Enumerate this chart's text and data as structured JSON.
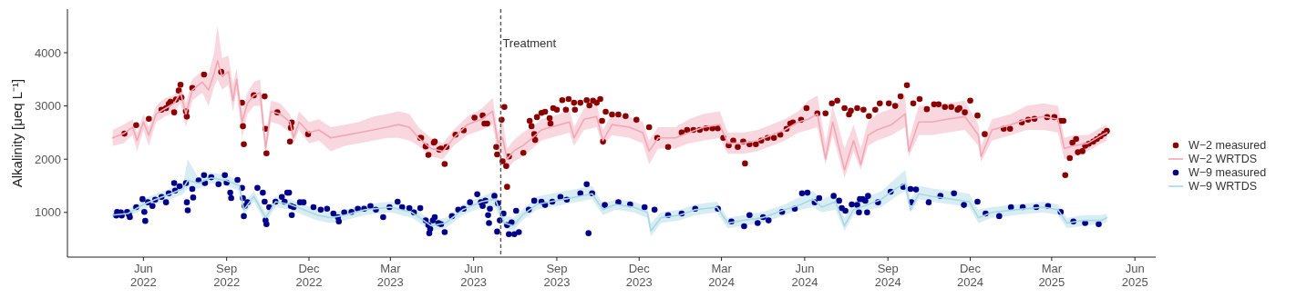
{
  "chart_data": {
    "type": "line",
    "ylabel": "Alkalinity [μeq L⁻¹]",
    "xlim": [
      "2022-03-09",
      "2025-06-24"
    ],
    "ylim": [
      160,
      4820
    ],
    "yticks": [
      1000,
      2000,
      3000,
      4000
    ],
    "xticks": [
      {
        "value": "2022-06-01",
        "label": "Jun 2022"
      },
      {
        "value": "2022-09-01",
        "label": "Sep 2022"
      },
      {
        "value": "2022-12-01",
        "label": "Dec 2022"
      },
      {
        "value": "2023-03-01",
        "label": "Mar 2023"
      },
      {
        "value": "2023-06-01",
        "label": "Jun 2023"
      },
      {
        "value": "2023-09-01",
        "label": "Sep 2023"
      },
      {
        "value": "2023-12-01",
        "label": "Dec 2023"
      },
      {
        "value": "2024-03-01",
        "label": "Mar 2024"
      },
      {
        "value": "2024-06-01",
        "label": "Jun 2024"
      },
      {
        "value": "2024-09-01",
        "label": "Sep 2024"
      },
      {
        "value": "2024-12-01",
        "label": "Dec 2024"
      },
      {
        "value": "2025-03-01",
        "label": "Mar 2025"
      },
      {
        "value": "2025-06-01",
        "label": "Jun 2025"
      }
    ],
    "legend": "right",
    "grid": false,
    "ref_lines": [
      {
        "axis": "x",
        "value": "2023-07-01",
        "label": "Treatment",
        "color": "#555555",
        "line_style": "dashed"
      }
    ],
    "series": [
      {
        "name": "W−2 measured",
        "type": "scatter",
        "marker": "circle",
        "color": "#8b0000",
        "x": [
          "2022-05-11",
          "2022-05-24",
          "2022-06-07",
          "2022-06-21",
          "2022-06-26",
          "2022-06-29",
          "2022-07-01",
          "2022-07-05",
          "2022-07-07",
          "2022-07-10",
          "2022-07-12",
          "2022-07-13",
          "2022-07-18",
          "2022-07-19",
          "2022-07-25",
          "2022-08-07",
          "2022-08-26",
          "2022-09-18",
          "2022-09-19",
          "2022-09-20",
          "2022-10-01",
          "2022-10-13",
          "2022-10-14",
          "2022-10-15",
          "2022-10-27",
          "2022-11-12",
          "2022-11-11",
          "2022-11-10",
          "2022-11-30",
          "2023-04-03",
          "2023-04-04",
          "2023-04-09",
          "2023-04-12",
          "2023-04-18",
          "2023-04-19",
          "2023-04-24",
          "2023-04-26",
          "2023-04-30",
          "2023-05-02",
          "2023-05-12",
          "2023-05-21",
          "2023-06-02",
          "2023-06-11",
          "2023-06-13",
          "2023-06-16",
          "2023-06-26",
          "2023-06-27",
          "2023-07-02",
          "2023-07-05",
          "2023-07-03",
          "2023-07-07",
          "2023-07-08",
          "2023-07-10",
          "2023-07-26",
          "2023-08-02",
          "2023-08-04",
          "2023-08-07",
          "2023-08-08",
          "2023-08-10",
          "2023-08-15",
          "2023-08-19",
          "2023-08-24",
          "2023-08-25",
          "2023-08-28",
          "2023-09-01",
          "2023-09-07",
          "2023-09-11",
          "2023-09-14",
          "2023-09-20",
          "2023-09-21",
          "2023-09-27",
          "2023-10-04",
          "2023-10-07",
          "2023-10-11",
          "2023-10-15",
          "2023-10-19",
          "2023-10-21",
          "2023-10-22",
          "2023-10-25",
          "2023-11-01",
          "2023-11-08",
          "2023-11-16",
          "2023-11-28",
          "2023-12-12",
          "2023-12-21",
          "2024-01-02",
          "2024-01-17",
          "2024-01-23",
          "2024-01-30",
          "2024-02-06",
          "2024-02-13",
          "2024-02-20",
          "2024-02-26",
          "2024-03-03",
          "2024-03-09",
          "2024-03-14",
          "2024-03-19",
          "2024-03-25",
          "2024-03-27",
          "2024-04-01",
          "2024-04-08",
          "2024-04-14",
          "2024-04-21",
          "2024-04-28",
          "2024-05-05",
          "2024-05-12",
          "2024-05-16",
          "2024-05-19",
          "2024-05-28",
          "2024-06-03",
          "2024-06-15",
          "2024-06-24",
          "2024-07-01",
          "2024-07-07",
          "2024-07-15",
          "2024-07-20",
          "2024-07-22",
          "2024-07-29",
          "2024-08-05",
          "2024-08-11",
          "2024-08-18",
          "2024-08-23",
          "2024-09-02",
          "2024-09-09",
          "2024-09-15",
          "2024-09-22",
          "2024-09-29",
          "2024-10-06",
          "2024-10-14",
          "2024-10-22",
          "2024-10-27",
          "2024-11-03",
          "2024-11-10",
          "2024-11-17",
          "2024-11-19",
          "2024-11-25",
          "2024-12-01",
          "2024-12-09",
          "2024-12-17",
          "2025-01-07",
          "2025-01-14",
          "2025-01-27",
          "2025-02-03",
          "2025-02-10",
          "2025-02-24",
          "2025-03-04",
          "2025-03-11",
          "2025-03-14",
          "2025-03-16",
          "2025-03-21",
          "2025-03-24",
          "2025-03-28",
          "2025-03-30",
          "2025-04-04",
          "2025-04-07",
          "2025-04-11",
          "2025-04-16",
          "2025-04-20",
          "2025-04-24",
          "2025-04-28",
          "2025-05-01"
        ],
        "values": [
          2480,
          2640,
          2760,
          2930,
          2960,
          3040,
          3080,
          2880,
          3120,
          3290,
          3400,
          3160,
          2900,
          2800,
          3340,
          3590,
          3640,
          3060,
          2620,
          2280,
          3200,
          3180,
          2570,
          2110,
          2880,
          2690,
          2590,
          2330,
          2470,
          2400,
          2400,
          2240,
          2080,
          2310,
          2330,
          2180,
          2200,
          1910,
          2230,
          2460,
          2540,
          2780,
          2820,
          2670,
          2670,
          2230,
          2090,
          2740,
          2980,
          1960,
          1870,
          1480,
          2050,
          2120,
          2720,
          2620,
          2470,
          2360,
          2790,
          2870,
          2890,
          2770,
          2670,
          2960,
          2930,
          3110,
          2930,
          3130,
          3060,
          2930,
          3060,
          3110,
          3010,
          3100,
          3060,
          3130,
          2720,
          2330,
          2890,
          2840,
          2840,
          2810,
          2740,
          2600,
          2400,
          2230,
          2500,
          2550,
          2550,
          2550,
          2580,
          2580,
          2580,
          2400,
          2260,
          2350,
          2230,
          2330,
          1920,
          2280,
          2280,
          2350,
          2400,
          2400,
          2460,
          2570,
          2670,
          2690,
          2740,
          2960,
          2860,
          2860,
          3050,
          3100,
          2960,
          2840,
          2910,
          2960,
          2930,
          2810,
          2930,
          3050,
          3050,
          3000,
          3180,
          3390,
          3050,
          3130,
          2940,
          3030,
          3030,
          2980,
          2980,
          2930,
          2960,
          2880,
          3100,
          2820,
          2470,
          2570,
          2570,
          2690,
          2740,
          2760,
          2790,
          2790,
          2720,
          2720,
          1700,
          2020,
          2310,
          2380,
          2130,
          2150,
          2250,
          2290,
          2330,
          2380,
          2430,
          2480,
          2530
        ]
      },
      {
        "name": "W−2 WRTDS",
        "marker": "none",
        "color": "#f2a7b6",
        "x": [
          "2022-04-28",
          "2022-05-10",
          "2022-05-20",
          "2022-05-25",
          "2022-06-01",
          "2022-06-07",
          "2022-06-15",
          "2022-06-25",
          "2022-07-05",
          "2022-07-12",
          "2022-07-18",
          "2022-07-25",
          "2022-08-05",
          "2022-08-12",
          "2022-08-18",
          "2022-08-22",
          "2022-08-27",
          "2022-09-03",
          "2022-09-08",
          "2022-09-12",
          "2022-09-18",
          "2022-09-24",
          "2022-10-01",
          "2022-10-08",
          "2022-10-14",
          "2022-10-20",
          "2022-10-30",
          "2022-11-10",
          "2022-11-14",
          "2022-11-20",
          "2022-12-01",
          "2022-12-12",
          "2022-12-25",
          "2023-01-10",
          "2023-01-25",
          "2023-02-10",
          "2023-02-25",
          "2023-03-10",
          "2023-03-22",
          "2023-04-01",
          "2023-04-15",
          "2023-04-28",
          "2023-05-10",
          "2023-05-25",
          "2023-06-10",
          "2023-06-22",
          "2023-06-28",
          "2023-07-03",
          "2023-07-08",
          "2023-07-15",
          "2023-07-25",
          "2023-08-05",
          "2023-08-15",
          "2023-08-25",
          "2023-09-05",
          "2023-09-15",
          "2023-09-20",
          "2023-10-01",
          "2023-10-15",
          "2023-10-22",
          "2023-11-01",
          "2023-11-20",
          "2023-12-05",
          "2023-12-12",
          "2023-12-22",
          "2024-01-10",
          "2024-01-25",
          "2024-02-10",
          "2024-02-28",
          "2024-03-08",
          "2024-03-25",
          "2024-04-10",
          "2024-04-25",
          "2024-05-10",
          "2024-05-25",
          "2024-06-05",
          "2024-06-15",
          "2024-06-24",
          "2024-07-02",
          "2024-07-15",
          "2024-07-25",
          "2024-08-02",
          "2024-08-10",
          "2024-08-20",
          "2024-09-05",
          "2024-09-20",
          "2024-09-24",
          "2024-10-05",
          "2024-10-20",
          "2024-11-05",
          "2024-11-25",
          "2024-12-10",
          "2024-12-13",
          "2024-12-25",
          "2025-01-15",
          "2025-02-01",
          "2025-02-20",
          "2025-03-08",
          "2025-03-15",
          "2025-03-25",
          "2025-04-10",
          "2025-04-25",
          "2025-05-01"
        ],
        "values": [
          2400,
          2480,
          2600,
          2350,
          2700,
          2450,
          2850,
          2950,
          3050,
          3250,
          2850,
          3300,
          3450,
          3300,
          3600,
          3850,
          3550,
          3650,
          3100,
          3500,
          2700,
          3050,
          3200,
          3250,
          2200,
          2900,
          2850,
          2700,
          2400,
          2700,
          2500,
          2550,
          2400,
          2450,
          2500,
          2550,
          2600,
          2650,
          2600,
          2400,
          2200,
          2150,
          2400,
          2650,
          2750,
          2900,
          2300,
          2400,
          2000,
          2150,
          2250,
          2400,
          2550,
          2600,
          2650,
          2700,
          2400,
          2750,
          2800,
          2350,
          2650,
          2600,
          2500,
          2150,
          2400,
          2400,
          2500,
          2600,
          2650,
          2300,
          2300,
          2350,
          2450,
          2550,
          2700,
          2750,
          2850,
          2000,
          2700,
          1800,
          2350,
          1900,
          2450,
          2550,
          2650,
          2850,
          2150,
          2700,
          2700,
          2750,
          2800,
          2450,
          2050,
          2550,
          2650,
          2750,
          2800,
          2750,
          2200,
          2250,
          2300,
          2450,
          2500
        ],
        "lower": [
          2250,
          2300,
          2450,
          2150,
          2550,
          2250,
          2700,
          2800,
          2900,
          3050,
          2600,
          3100,
          3250,
          3000,
          3350,
          3500,
          3300,
          3400,
          2900,
          3300,
          2400,
          2850,
          3000,
          3000,
          2100,
          2700,
          2650,
          2500,
          2300,
          2550,
          2300,
          2350,
          2150,
          2250,
          2300,
          2350,
          2400,
          2400,
          2350,
          2250,
          2050,
          2000,
          2250,
          2450,
          2550,
          2650,
          2100,
          2100,
          1800,
          1950,
          2050,
          2200,
          2350,
          2400,
          2450,
          2500,
          2250,
          2550,
          2600,
          2250,
          2450,
          2400,
          2300,
          1900,
          2200,
          2200,
          2300,
          2350,
          2400,
          2100,
          2100,
          2150,
          2250,
          2350,
          2500,
          2550,
          2600,
          1900,
          2450,
          1650,
          2150,
          1800,
          2250,
          2350,
          2450,
          2600,
          2050,
          2450,
          2450,
          2500,
          2550,
          2250,
          1950,
          2350,
          2450,
          2550,
          2550,
          2500,
          2000,
          2050,
          2150,
          2300,
          2350
        ],
        "upper": [
          2550,
          2650,
          2750,
          2500,
          2850,
          2600,
          3000,
          3150,
          3200,
          3450,
          3050,
          3500,
          3650,
          3600,
          4000,
          4500,
          3900,
          3950,
          3400,
          3700,
          2900,
          3250,
          3450,
          3500,
          2400,
          3100,
          3050,
          2850,
          2550,
          2900,
          2700,
          2750,
          2600,
          2650,
          2700,
          2800,
          2850,
          2900,
          2850,
          2600,
          2400,
          2300,
          2550,
          2800,
          2950,
          3150,
          2500,
          2750,
          2200,
          2350,
          2500,
          2600,
          2750,
          2800,
          2850,
          2950,
          2600,
          2950,
          3050,
          2550,
          2850,
          2800,
          2700,
          2350,
          2600,
          2600,
          2750,
          2850,
          2900,
          2500,
          2500,
          2550,
          2650,
          2750,
          2900,
          3100,
          3200,
          2300,
          3000,
          2200,
          2650,
          2200,
          2700,
          2850,
          2950,
          3200,
          2350,
          3000,
          3000,
          3050,
          3100,
          2650,
          2250,
          2750,
          2850,
          3000,
          3050,
          3000,
          2400,
          2450,
          2450,
          2600,
          2650
        ]
      },
      {
        "name": "W−9 measured",
        "type": "scatter",
        "marker": "circle",
        "color": "#00008b",
        "x": [
          "2022-05-02",
          "2022-05-03",
          "2022-05-07",
          "2022-05-08",
          "2022-05-14",
          "2022-05-16",
          "2022-05-17",
          "2022-05-24",
          "2022-05-31",
          "2022-06-02",
          "2022-06-03",
          "2022-06-06",
          "2022-06-11",
          "2022-06-14",
          "2022-06-21",
          "2022-06-26",
          "2022-06-29",
          "2022-07-05",
          "2022-07-06",
          "2022-07-11",
          "2022-07-18",
          "2022-07-19",
          "2022-07-20",
          "2022-07-25",
          "2022-07-26",
          "2022-08-01",
          "2022-08-07",
          "2022-08-08",
          "2022-08-15",
          "2022-08-23",
          "2022-08-30",
          "2022-09-01",
          "2022-09-05",
          "2022-09-06",
          "2022-09-13",
          "2022-09-18",
          "2022-09-19",
          "2022-09-20",
          "2022-09-21",
          "2022-09-24",
          "2022-10-05",
          "2022-10-11",
          "2022-10-13",
          "2022-10-14",
          "2022-10-15",
          "2022-10-18",
          "2022-10-25",
          "2022-11-01",
          "2022-11-04",
          "2022-11-07",
          "2022-11-09",
          "2022-11-11",
          "2022-11-12",
          "2022-11-14",
          "2022-11-21",
          "2022-11-25",
          "2022-12-06",
          "2022-12-14",
          "2022-12-21",
          "2022-12-28",
          "2023-01-02",
          "2023-01-03",
          "2023-01-09",
          "2023-01-17",
          "2023-01-24",
          "2023-01-31",
          "2023-02-07",
          "2023-02-13",
          "2023-02-21",
          "2023-02-28",
          "2023-03-09",
          "2023-03-14",
          "2023-03-22",
          "2023-03-27",
          "2023-04-03",
          "2023-04-09",
          "2023-04-12",
          "2023-04-13",
          "2023-04-14",
          "2023-04-17",
          "2023-04-19",
          "2023-04-23",
          "2023-04-26",
          "2023-04-30",
          "2023-05-08",
          "2023-05-15",
          "2023-05-21",
          "2023-05-28",
          "2023-06-05",
          "2023-06-09",
          "2023-06-11",
          "2023-06-14",
          "2023-06-17",
          "2023-06-18",
          "2023-06-19",
          "2023-06-24",
          "2023-06-27",
          "2023-06-28",
          "2023-06-30",
          "2023-07-04",
          "2023-07-08",
          "2023-07-10",
          "2023-07-13",
          "2023-07-16",
          "2023-07-18",
          "2023-07-21",
          "2023-08-01",
          "2023-08-07",
          "2023-08-15",
          "2023-08-19",
          "2023-08-27",
          "2023-09-05",
          "2023-09-12",
          "2023-09-27",
          "2023-10-04",
          "2023-10-06",
          "2023-10-10",
          "2023-10-24",
          "2023-11-08",
          "2023-11-21",
          "2023-12-07",
          "2023-12-18",
          "2024-01-02",
          "2024-01-17",
          "2024-02-01",
          "2024-02-26",
          "2024-03-12",
          "2024-03-26",
          "2024-04-01",
          "2024-04-10",
          "2024-04-16",
          "2024-04-22",
          "2024-05-07",
          "2024-05-21",
          "2024-05-29",
          "2024-06-04",
          "2024-06-12",
          "2024-06-17",
          "2024-07-03",
          "2024-07-09",
          "2024-07-12",
          "2024-07-16",
          "2024-07-23",
          "2024-07-29",
          "2024-07-31",
          "2024-08-01",
          "2024-08-04",
          "2024-08-07",
          "2024-08-09",
          "2024-08-10",
          "2024-08-21",
          "2024-09-04",
          "2024-09-18",
          "2024-09-26",
          "2024-09-27",
          "2024-10-02",
          "2024-10-16",
          "2024-10-29",
          "2024-11-13",
          "2024-11-24",
          "2024-12-09",
          "2024-12-18",
          "2025-01-02",
          "2025-01-15",
          "2025-01-28",
          "2025-02-12",
          "2025-02-25",
          "2025-03-11",
          "2025-03-25",
          "2025-04-07",
          "2025-04-22"
        ],
        "values": [
          940,
          1010,
          1000,
          940,
          1010,
          960,
          910,
          1100,
          1250,
          1010,
          840,
          1190,
          1120,
          1240,
          1290,
          1190,
          1360,
          1550,
          1410,
          1490,
          1550,
          1190,
          1040,
          1440,
          1280,
          1600,
          1700,
          1550,
          1660,
          1530,
          1700,
          1560,
          1370,
          1270,
          1610,
          1460,
          1270,
          930,
          1120,
          1190,
          1460,
          1370,
          1200,
          850,
          780,
          1100,
          1200,
          1290,
          1200,
          1370,
          1370,
          1120,
          950,
          1100,
          1190,
          1190,
          1100,
          1050,
          1070,
          980,
          910,
          830,
          1000,
          1010,
          1070,
          1070,
          1120,
          1050,
          910,
          1100,
          1200,
          1100,
          1080,
          1000,
          1080,
          850,
          760,
          610,
          690,
          850,
          910,
          800,
          780,
          630,
          930,
          1050,
          1070,
          1190,
          1340,
          1190,
          1120,
          1220,
          950,
          800,
          1070,
          1310,
          640,
          1170,
          850,
          980,
          760,
          590,
          810,
          590,
          1030,
          630,
          1050,
          1220,
          1200,
          1140,
          1200,
          1290,
          1240,
          1360,
          1530,
          610,
          1360,
          1140,
          1190,
          1150,
          1100,
          1050,
          950,
          980,
          1070,
          1070,
          830,
          740,
          950,
          800,
          910,
          850,
          1010,
          1070,
          1360,
          1370,
          1190,
          1270,
          1310,
          1220,
          1080,
          1030,
          1150,
          1140,
          1000,
          1250,
          1250,
          1220,
          1000,
          1310,
          1190,
          1390,
          1480,
          1440,
          1190,
          1430,
          1190,
          1310,
          1360,
          1140,
          1200,
          980,
          930,
          1100,
          1100,
          1100,
          1120,
          1010,
          830,
          800,
          780
        ]
      },
      {
        "name": "W−9 WRTDS",
        "marker": "none",
        "color": "#a8d8e4",
        "x": [
          "2022-04-28",
          "2022-05-15",
          "2022-06-01",
          "2022-06-15",
          "2022-07-01",
          "2022-07-15",
          "2022-07-20",
          "2022-08-01",
          "2022-08-15",
          "2022-09-01",
          "2022-09-15",
          "2022-09-20",
          "2022-10-01",
          "2022-10-14",
          "2022-10-25",
          "2022-11-10",
          "2022-11-25",
          "2022-12-10",
          "2022-12-25",
          "2023-01-10",
          "2023-02-01",
          "2023-03-01",
          "2023-03-25",
          "2023-04-15",
          "2023-05-01",
          "2023-05-20",
          "2023-06-10",
          "2023-06-25",
          "2023-07-05",
          "2023-07-15",
          "2023-07-25",
          "2023-08-10",
          "2023-08-25",
          "2023-09-10",
          "2023-09-25",
          "2023-10-10",
          "2023-10-22",
          "2023-11-05",
          "2023-11-25",
          "2023-12-10",
          "2023-12-14",
          "2023-12-25",
          "2024-01-15",
          "2024-02-01",
          "2024-02-25",
          "2024-03-08",
          "2024-03-25",
          "2024-04-15",
          "2024-05-10",
          "2024-05-28",
          "2024-06-10",
          "2024-06-20",
          "2024-07-05",
          "2024-07-15",
          "2024-07-25",
          "2024-08-10",
          "2024-08-25",
          "2024-09-10",
          "2024-09-20",
          "2024-09-26",
          "2024-10-05",
          "2024-10-20",
          "2024-11-10",
          "2024-11-30",
          "2024-12-10",
          "2024-12-25",
          "2025-01-20",
          "2025-02-20",
          "2025-03-08",
          "2025-03-18",
          "2025-04-05",
          "2025-04-25",
          "2025-05-01"
        ],
        "values": [
          950,
          980,
          1150,
          1250,
          1350,
          1450,
          1600,
          1550,
          1650,
          1600,
          1500,
          1050,
          1300,
          900,
          1200,
          1150,
          1050,
          950,
          900,
          950,
          1050,
          1100,
          1000,
          750,
          800,
          1050,
          1200,
          1250,
          800,
          750,
          950,
          1150,
          1200,
          1250,
          1300,
          1350,
          1050,
          1150,
          1100,
          1000,
          650,
          900,
          950,
          1050,
          1100,
          800,
          850,
          900,
          1050,
          1150,
          1250,
          1100,
          1200,
          750,
          1050,
          1150,
          1250,
          1450,
          1550,
          1050,
          1350,
          1300,
          1250,
          1200,
          900,
          1000,
          1050,
          1100,
          1050,
          800,
          850,
          850,
          900
        ],
        "lower": [
          900,
          920,
          1050,
          1150,
          1250,
          1350,
          1450,
          1450,
          1550,
          1500,
          1400,
          950,
          1200,
          800,
          1100,
          1050,
          950,
          850,
          800,
          850,
          950,
          1000,
          900,
          650,
          700,
          950,
          1100,
          1100,
          700,
          650,
          850,
          1050,
          1100,
          1150,
          1200,
          1250,
          950,
          1050,
          1000,
          900,
          550,
          800,
          850,
          950,
          1000,
          700,
          750,
          800,
          950,
          1050,
          1100,
          1000,
          1050,
          650,
          950,
          1050,
          1100,
          1300,
          1400,
          1000,
          1250,
          1200,
          1150,
          1100,
          800,
          900,
          950,
          1000,
          950,
          700,
          750,
          780,
          820
        ],
        "upper": [
          1050,
          1050,
          1250,
          1350,
          1450,
          1550,
          2000,
          1650,
          1750,
          1700,
          1600,
          1150,
          1400,
          1000,
          1300,
          1250,
          1150,
          1050,
          1000,
          1050,
          1150,
          1200,
          1100,
          850,
          900,
          1150,
          1300,
          1400,
          950,
          900,
          1050,
          1300,
          1350,
          1400,
          1450,
          1500,
          1150,
          1250,
          1200,
          1100,
          800,
          1000,
          1050,
          1150,
          1200,
          900,
          950,
          1000,
          1150,
          1300,
          1400,
          1250,
          1350,
          900,
          1200,
          1300,
          1400,
          1650,
          1800,
          1250,
          1500,
          1450,
          1400,
          1350,
          1050,
          1100,
          1150,
          1200,
          1150,
          900,
          950,
          950,
          980
        ]
      }
    ]
  }
}
